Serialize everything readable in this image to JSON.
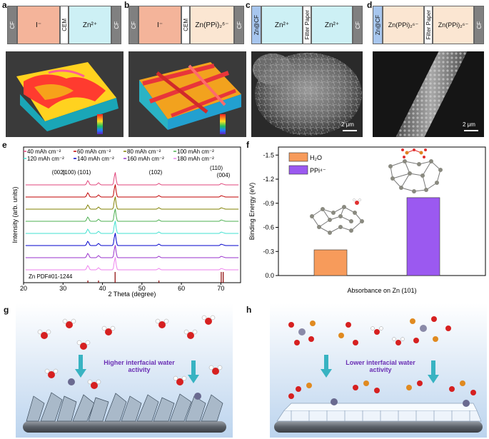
{
  "panels": {
    "a": {
      "letter": "a",
      "left_cf": "CF",
      "left_label": "I⁻",
      "separator": "CEM",
      "right_label": "Zn²⁺",
      "right_cf": "CF"
    },
    "b": {
      "letter": "b",
      "left_cf": "CF",
      "left_label": "I⁻",
      "separator": "CEM",
      "right_label": "Zn(PPi)₂⁶⁻",
      "right_cf": "CF"
    },
    "c": {
      "letter": "c",
      "left_cf": "Zn@CF",
      "left_label": "Zn²⁺",
      "separator": "Filter Paper",
      "right_label": "Zn²⁺",
      "right_cf": "CF"
    },
    "d": {
      "letter": "d",
      "left_cf": "Zn@CF",
      "left_label": "Zn(PPi)₂⁶⁻",
      "separator": "Filter Paper",
      "right_label": "Zn(PPi)₂⁶⁻",
      "right_cf": "CF"
    },
    "c_scale": "2 μm",
    "d_scale": "2 μm",
    "e_letter": "e",
    "f_letter": "f",
    "g_letter": "g",
    "h_letter": "h"
  },
  "xrd": {
    "legend": [
      "40 mAh cm⁻²",
      "60 mAh cm⁻²",
      "80 mAh cm⁻²",
      "100 mAh cm⁻²",
      "120 mAh cm⁻²",
      "140 mAh cm⁻²",
      "160 mAh cm⁻²",
      "180 mAh cm⁻²"
    ],
    "peaks": [
      "(002)",
      "(100)",
      "(101)",
      "(102)",
      "(110)",
      "(004)"
    ],
    "reference": "Zn PDF#01-1244",
    "xlabel": "2 Theta (degree)",
    "ylabel": "Intensity (arb. units)"
  },
  "binding": {
    "legend_h2o": "H₂O",
    "legend_ppi": "PPi⁴⁻",
    "ylabel": "Binding Energy (eV)",
    "xlabel": "Absorbance on Zn (101)"
  },
  "schematic": {
    "g_text": "Higher interfacial water activity",
    "h_text": "Lower interfacial water activity"
  },
  "chart_data": [
    {
      "type": "line",
      "title": "",
      "xlabel": "2 Theta (degree)",
      "ylabel": "Intensity (arb. units)",
      "xlim": [
        20,
        75
      ],
      "x_ticks": [
        20,
        30,
        40,
        50,
        60,
        70
      ],
      "series_names": [
        "40 mAh cm⁻²",
        "60 mAh cm⁻²",
        "80 mAh cm⁻²",
        "100 mAh cm⁻²",
        "120 mAh cm⁻²",
        "140 mAh cm⁻²",
        "160 mAh cm⁻²",
        "180 mAh cm⁻²"
      ],
      "series_colors": [
        "#e0457b",
        "#c00000",
        "#808000",
        "#4caf50",
        "#40e0d0",
        "#0000cc",
        "#9932cc",
        "#ee82ee"
      ],
      "peak_positions": [
        36.3,
        39.0,
        43.2,
        54.3,
        70.1,
        70.6
      ],
      "peak_labels": [
        "(002)",
        "(100)",
        "(101)",
        "(102)",
        "(110)",
        "(004)"
      ],
      "reference": "Zn PDF#01-1244"
    },
    {
      "type": "bar",
      "title": "",
      "xlabel": "Absorbance on Zn (101)",
      "ylabel": "Binding Energy (eV)",
      "categories": [
        "H₂O",
        "PPi⁴⁻"
      ],
      "values": [
        -0.32,
        -0.97
      ],
      "colors": [
        "#f79b5b",
        "#9b59f0"
      ],
      "ylim": [
        0,
        -1.6
      ],
      "y_ticks": [
        -1.5,
        -1.2,
        -0.9,
        -0.6,
        -0.3,
        0.0
      ]
    }
  ]
}
